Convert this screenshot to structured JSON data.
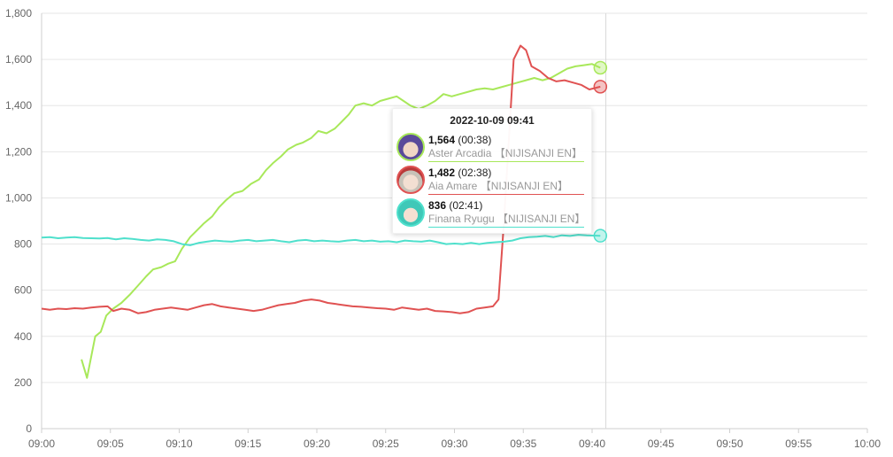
{
  "chart_data": {
    "type": "line",
    "x_unit": "time",
    "xlim": [
      "09:00",
      "10:00"
    ],
    "ylim": [
      0,
      1800
    ],
    "x_ticks": [
      "09:00",
      "09:05",
      "09:10",
      "09:15",
      "09:20",
      "09:25",
      "09:30",
      "09:35",
      "09:40",
      "09:45",
      "09:50",
      "09:55",
      "10:00"
    ],
    "y_ticks": [
      "0",
      "200",
      "400",
      "600",
      "800",
      "1,000",
      "1,200",
      "1,400",
      "1,600",
      "1,800"
    ],
    "y_tick_values": [
      0,
      200,
      400,
      600,
      800,
      1000,
      1200,
      1400,
      1600,
      1800
    ],
    "grid": true,
    "hover_time": "09:41",
    "series": [
      {
        "name": "Aster Arcadia 【NIJISANJI EN】",
        "color": "#a8e85a",
        "points": [
          [
            "09:02.9",
            300
          ],
          [
            "09:03.3",
            220
          ],
          [
            "09:03.9",
            400
          ],
          [
            "09:04.3",
            420
          ],
          [
            "09:04.7",
            490
          ],
          [
            "09:05.2",
            520
          ],
          [
            "09:05.8",
            545
          ],
          [
            "09:06.4",
            580
          ],
          [
            "09:07.0",
            620
          ],
          [
            "09:07.6",
            660
          ],
          [
            "09:08.1",
            690
          ],
          [
            "09:08.7",
            700
          ],
          [
            "09:09.2",
            715
          ],
          [
            "09:09.7",
            725
          ],
          [
            "09:10.2",
            780
          ],
          [
            "09:10.8",
            830
          ],
          [
            "09:11.3",
            860
          ],
          [
            "09:11.8",
            890
          ],
          [
            "09:12.4",
            920
          ],
          [
            "09:12.9",
            960
          ],
          [
            "09:13.4",
            990
          ],
          [
            "09:14.0",
            1020
          ],
          [
            "09:14.6",
            1030
          ],
          [
            "09:15.2",
            1060
          ],
          [
            "09:15.8",
            1080
          ],
          [
            "09:16.3",
            1120
          ],
          [
            "09:16.8",
            1150
          ],
          [
            "09:17.4",
            1180
          ],
          [
            "09:17.9",
            1210
          ],
          [
            "09:18.5",
            1230
          ],
          [
            "09:19.0",
            1240
          ],
          [
            "09:19.6",
            1260
          ],
          [
            "09:20.1",
            1290
          ],
          [
            "09:20.7",
            1280
          ],
          [
            "09:21.3",
            1300
          ],
          [
            "09:21.8",
            1330
          ],
          [
            "09:22.3",
            1360
          ],
          [
            "09:22.8",
            1400
          ],
          [
            "09:23.4",
            1410
          ],
          [
            "09:24.0",
            1400
          ],
          [
            "09:24.6",
            1420
          ],
          [
            "09:25.2",
            1430
          ],
          [
            "09:25.8",
            1440
          ],
          [
            "09:26.3",
            1420
          ],
          [
            "09:26.8",
            1400
          ],
          [
            "09:27.4",
            1385
          ],
          [
            "09:28.0",
            1400
          ],
          [
            "09:28.6",
            1420
          ],
          [
            "09:29.2",
            1450
          ],
          [
            "09:29.8",
            1440
          ],
          [
            "09:30.4",
            1450
          ],
          [
            "09:31.0",
            1460
          ],
          [
            "09:31.6",
            1470
          ],
          [
            "09:32.2",
            1475
          ],
          [
            "09:32.8",
            1470
          ],
          [
            "09:33.4",
            1480
          ],
          [
            "09:34.0",
            1490
          ],
          [
            "09:34.6",
            1500
          ],
          [
            "09:35.2",
            1510
          ],
          [
            "09:35.8",
            1520
          ],
          [
            "09:36.4",
            1510
          ],
          [
            "09:37.0",
            1520
          ],
          [
            "09:37.6",
            1540
          ],
          [
            "09:38.2",
            1560
          ],
          [
            "09:38.8",
            1570
          ],
          [
            "09:39.4",
            1575
          ],
          [
            "09:40.0",
            1580
          ],
          [
            "09:40.6",
            1564
          ]
        ]
      },
      {
        "name": "Aia Amare 【NIJISANJI EN】",
        "color": "#e05252",
        "points": [
          [
            "09:00.0",
            520
          ],
          [
            "09:00.6",
            515
          ],
          [
            "09:01.2",
            520
          ],
          [
            "09:01.8",
            518
          ],
          [
            "09:02.4",
            522
          ],
          [
            "09:03.0",
            520
          ],
          [
            "09:03.6",
            525
          ],
          [
            "09:04.2",
            528
          ],
          [
            "09:04.8",
            530
          ],
          [
            "09:05.2",
            510
          ],
          [
            "09:05.8",
            520
          ],
          [
            "09:06.4",
            515
          ],
          [
            "09:07.0",
            500
          ],
          [
            "09:07.6",
            505
          ],
          [
            "09:08.2",
            515
          ],
          [
            "09:08.8",
            520
          ],
          [
            "09:09.4",
            525
          ],
          [
            "09:10.0",
            520
          ],
          [
            "09:10.6",
            515
          ],
          [
            "09:11.2",
            525
          ],
          [
            "09:11.8",
            535
          ],
          [
            "09:12.4",
            540
          ],
          [
            "09:13.0",
            530
          ],
          [
            "09:13.6",
            525
          ],
          [
            "09:14.2",
            520
          ],
          [
            "09:14.8",
            515
          ],
          [
            "09:15.4",
            510
          ],
          [
            "09:16.0",
            515
          ],
          [
            "09:16.6",
            525
          ],
          [
            "09:17.2",
            535
          ],
          [
            "09:17.8",
            540
          ],
          [
            "09:18.4",
            545
          ],
          [
            "09:19.0",
            555
          ],
          [
            "09:19.6",
            560
          ],
          [
            "09:20.2",
            555
          ],
          [
            "09:20.8",
            545
          ],
          [
            "09:21.4",
            540
          ],
          [
            "09:22.0",
            535
          ],
          [
            "09:22.6",
            530
          ],
          [
            "09:23.2",
            528
          ],
          [
            "09:23.8",
            525
          ],
          [
            "09:24.4",
            522
          ],
          [
            "09:25.0",
            520
          ],
          [
            "09:25.6",
            515
          ],
          [
            "09:26.2",
            525
          ],
          [
            "09:26.8",
            520
          ],
          [
            "09:27.4",
            515
          ],
          [
            "09:28.0",
            520
          ],
          [
            "09:28.6",
            510
          ],
          [
            "09:29.2",
            508
          ],
          [
            "09:29.8",
            505
          ],
          [
            "09:30.4",
            500
          ],
          [
            "09:31.0",
            505
          ],
          [
            "09:31.6",
            520
          ],
          [
            "09:32.2",
            525
          ],
          [
            "09:32.8",
            530
          ],
          [
            "09:33.2",
            560
          ],
          [
            "09:33.6",
            900
          ],
          [
            "09:34.0",
            1300
          ],
          [
            "09:34.3",
            1600
          ],
          [
            "09:34.8",
            1660
          ],
          [
            "09:35.2",
            1640
          ],
          [
            "09:35.6",
            1570
          ],
          [
            "09:36.2",
            1550
          ],
          [
            "09:36.8",
            1520
          ],
          [
            "09:37.4",
            1505
          ],
          [
            "09:38.0",
            1510
          ],
          [
            "09:38.6",
            1500
          ],
          [
            "09:39.2",
            1490
          ],
          [
            "09:39.8",
            1470
          ],
          [
            "09:40.6",
            1482
          ]
        ]
      },
      {
        "name": "Finana Ryugu 【NIJISANJI EN】",
        "color": "#4fe0cc",
        "points": [
          [
            "09:00.0",
            828
          ],
          [
            "09:00.6",
            830
          ],
          [
            "09:01.2",
            825
          ],
          [
            "09:01.8",
            828
          ],
          [
            "09:02.4",
            830
          ],
          [
            "09:03.0",
            826
          ],
          [
            "09:03.6",
            825
          ],
          [
            "09:04.2",
            824
          ],
          [
            "09:04.8",
            826
          ],
          [
            "09:05.4",
            820
          ],
          [
            "09:06.0",
            825
          ],
          [
            "09:06.6",
            822
          ],
          [
            "09:07.2",
            818
          ],
          [
            "09:07.8",
            815
          ],
          [
            "09:08.4",
            820
          ],
          [
            "09:09.0",
            818
          ],
          [
            "09:09.6",
            812
          ],
          [
            "09:10.2",
            800
          ],
          [
            "09:10.8",
            795
          ],
          [
            "09:11.4",
            805
          ],
          [
            "09:12.0",
            810
          ],
          [
            "09:12.6",
            815
          ],
          [
            "09:13.2",
            812
          ],
          [
            "09:13.8",
            810
          ],
          [
            "09:14.4",
            815
          ],
          [
            "09:15.0",
            818
          ],
          [
            "09:15.6",
            812
          ],
          [
            "09:16.2",
            815
          ],
          [
            "09:16.8",
            818
          ],
          [
            "09:17.4",
            812
          ],
          [
            "09:18.0",
            808
          ],
          [
            "09:18.6",
            815
          ],
          [
            "09:19.2",
            818
          ],
          [
            "09:19.8",
            812
          ],
          [
            "09:20.4",
            815
          ],
          [
            "09:21.0",
            812
          ],
          [
            "09:21.6",
            810
          ],
          [
            "09:22.2",
            815
          ],
          [
            "09:22.8",
            818
          ],
          [
            "09:23.4",
            812
          ],
          [
            "09:24.0",
            815
          ],
          [
            "09:24.6",
            810
          ],
          [
            "09:25.2",
            812
          ],
          [
            "09:25.8",
            808
          ],
          [
            "09:26.4",
            815
          ],
          [
            "09:27.0",
            812
          ],
          [
            "09:27.6",
            810
          ],
          [
            "09:28.2",
            815
          ],
          [
            "09:28.8",
            808
          ],
          [
            "09:29.4",
            800
          ],
          [
            "09:30.0",
            802
          ],
          [
            "09:30.6",
            800
          ],
          [
            "09:31.2",
            805
          ],
          [
            "09:31.8",
            800
          ],
          [
            "09:32.4",
            805
          ],
          [
            "09:33.0",
            808
          ],
          [
            "09:33.6",
            810
          ],
          [
            "09:34.2",
            815
          ],
          [
            "09:34.8",
            825
          ],
          [
            "09:35.4",
            830
          ],
          [
            "09:36.0",
            832
          ],
          [
            "09:36.6",
            835
          ],
          [
            "09:37.2",
            830
          ],
          [
            "09:37.8",
            838
          ],
          [
            "09:38.4",
            835
          ],
          [
            "09:39.0",
            840
          ],
          [
            "09:39.6",
            838
          ],
          [
            "09:40.6",
            836
          ]
        ]
      }
    ]
  },
  "tooltip": {
    "title": "2022-10-09 09:41",
    "rows": [
      {
        "value": "1,564",
        "duration": "(00:38)",
        "name": "Aster Arcadia 【NIJISANJI EN】",
        "color": "#a8e85a",
        "avatar-icon": "aster-avatar-icon"
      },
      {
        "value": "1,482",
        "duration": "(02:38)",
        "name": "Aia Amare 【NIJISANJI EN】",
        "color": "#e05252",
        "avatar-icon": "aia-avatar-icon"
      },
      {
        "value": "836",
        "duration": "(02:41)",
        "name": "Finana Ryugu 【NIJISANJI EN】",
        "color": "#4fe0cc",
        "avatar-icon": "finana-avatar-icon"
      }
    ]
  }
}
